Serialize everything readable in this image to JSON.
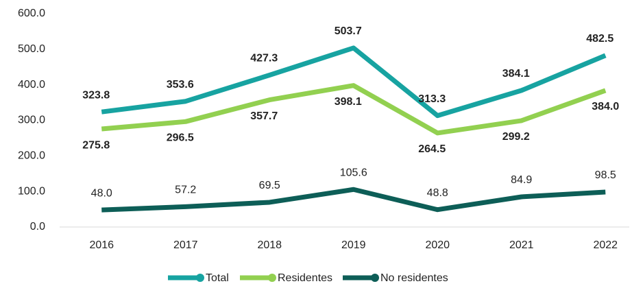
{
  "chart_data": {
    "type": "line",
    "categories": [
      "2016",
      "2017",
      "2018",
      "2019",
      "2020",
      "2021",
      "2022"
    ],
    "series": [
      {
        "name": "Total",
        "color": "#17a3a1",
        "label_color": "#43648a",
        "values": [
          323.8,
          353.6,
          427.3,
          503.7,
          313.3,
          384.1,
          482.5
        ],
        "value_labels": [
          "323.8",
          "353.6",
          "427.3",
          "503.7",
          "313.3",
          "384.1",
          "482.5"
        ]
      },
      {
        "name": "Residentes",
        "color": "#92d050",
        "label_color": "#92d050",
        "values": [
          275.8,
          296.5,
          357.7,
          398.1,
          264.5,
          299.2,
          384.0
        ],
        "value_labels": [
          "275.8",
          "296.5",
          "357.7",
          "398.1",
          "264.5",
          "299.2",
          "384.0"
        ]
      },
      {
        "name": "No residentes",
        "color": "#0d5e57",
        "label_color": "#222222",
        "values": [
          48.0,
          57.2,
          69.5,
          105.6,
          48.8,
          84.9,
          98.5
        ],
        "value_labels": [
          "48.0",
          "57.2",
          "69.5",
          "105.6",
          "48.8",
          "84.9",
          "98.5"
        ]
      }
    ],
    "ylim": [
      0,
      600
    ],
    "yticks": [
      {
        "value": 0,
        "label": "0.0"
      },
      {
        "value": 100,
        "label": "100.0"
      },
      {
        "value": 200,
        "label": "200.0"
      },
      {
        "value": 300,
        "label": "300.0"
      },
      {
        "value": 400,
        "label": "400.0"
      },
      {
        "value": 500,
        "label": "500.0"
      },
      {
        "value": 600,
        "label": "600.0"
      }
    ],
    "grid": false,
    "legend": "bottom"
  }
}
